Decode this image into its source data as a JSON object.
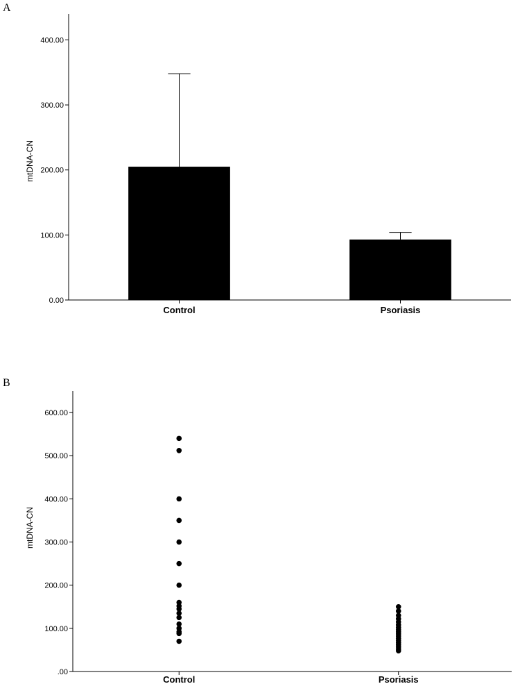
{
  "chart_data": [
    {
      "type": "bar",
      "panel_label": "A",
      "categories": [
        "Control",
        "Psoriasis"
      ],
      "values": [
        205,
        93
      ],
      "error_upper": [
        348,
        104
      ],
      "ylabel": "mtDNA-CN",
      "ylim": [
        0,
        440
      ],
      "yticks": [
        0,
        100,
        200,
        300,
        400
      ],
      "ytick_labels": [
        "0.00",
        "100.00",
        "200.00",
        "300.00",
        "400.00"
      ],
      "bar_color": "#000000",
      "grid": false
    },
    {
      "type": "scatter",
      "panel_label": "B",
      "categories": [
        "Control",
        "Psoriasis"
      ],
      "series": [
        {
          "category": "Control",
          "values": [
            540,
            512,
            400,
            350,
            300,
            250,
            200,
            160,
            152,
            145,
            135,
            125,
            110,
            100,
            92,
            88,
            70
          ]
        },
        {
          "category": "Psoriasis",
          "values": [
            150,
            140,
            130,
            122,
            115,
            108,
            102,
            97,
            92,
            87,
            82,
            77,
            72,
            67,
            62,
            57,
            52,
            48
          ]
        }
      ],
      "ylabel": "mtDNA-CN",
      "ylim": [
        0,
        650
      ],
      "yticks": [
        0,
        100,
        200,
        300,
        400,
        500,
        600
      ],
      "ytick_labels": [
        ".00",
        "100.00",
        "200.00",
        "300.00",
        "400.00",
        "500.00",
        "600.00"
      ],
      "marker_color": "#000000",
      "grid": false
    }
  ]
}
